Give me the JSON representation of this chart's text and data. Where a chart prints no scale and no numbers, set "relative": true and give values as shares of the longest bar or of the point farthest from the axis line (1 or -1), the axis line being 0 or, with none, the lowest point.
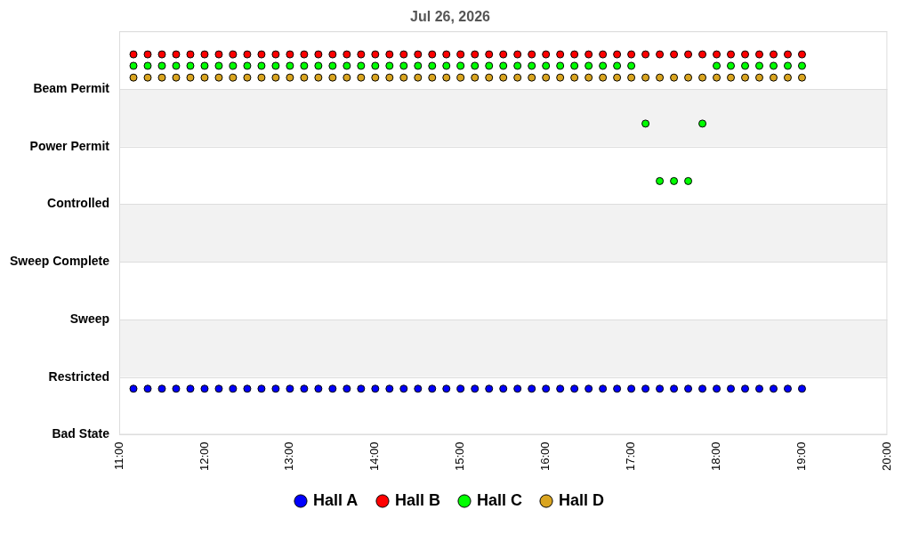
{
  "chart_data": {
    "type": "scatter",
    "title": "Jul 26, 2026",
    "relative": true,
    "x": [
      "2026-07-26T11:10",
      "2026-07-26T11:20",
      "2026-07-26T11:30",
      "2026-07-26T11:40",
      "2026-07-26T11:50",
      "2026-07-26T12:00",
      "2026-07-26T12:10",
      "2026-07-26T12:20",
      "2026-07-26T12:30",
      "2026-07-26T12:40",
      "2026-07-26T12:50",
      "2026-07-26T13:00",
      "2026-07-26T13:10",
      "2026-07-26T13:20",
      "2026-07-26T13:30",
      "2026-07-26T13:40",
      "2026-07-26T13:50",
      "2026-07-26T14:00",
      "2026-07-26T14:10",
      "2026-07-26T14:20",
      "2026-07-26T14:30",
      "2026-07-26T14:40",
      "2026-07-26T14:50",
      "2026-07-26T15:00",
      "2026-07-26T15:10",
      "2026-07-26T15:20",
      "2026-07-26T15:30",
      "2026-07-26T15:40",
      "2026-07-26T15:50",
      "2026-07-26T16:00",
      "2026-07-26T16:10",
      "2026-07-26T16:20",
      "2026-07-26T16:30",
      "2026-07-26T16:40",
      "2026-07-26T16:50",
      "2026-07-26T17:00",
      "2026-07-26T17:10",
      "2026-07-26T17:20",
      "2026-07-26T17:30",
      "2026-07-26T17:40",
      "2026-07-26T17:50",
      "2026-07-26T18:00",
      "2026-07-26T18:10",
      "2026-07-26T18:20",
      "2026-07-26T18:30",
      "2026-07-26T18:40",
      "2026-07-26T18:50",
      "2026-07-26T19:00"
    ],
    "y_categories": [
      "Beam Permit",
      "Power Permit",
      "Controlled",
      "Sweep Complete",
      "Sweep",
      "Restricted",
      "Bad State"
    ],
    "series": [
      {
        "name": "Hall A",
        "color": "#0000ff",
        "values": [
          0.121,
          0.121,
          0.121,
          0.121,
          0.121,
          0.121,
          0.121,
          0.121,
          0.121,
          0.121,
          0.121,
          0.121,
          0.121,
          0.121,
          0.121,
          0.121,
          0.121,
          0.121,
          0.121,
          0.121,
          0.121,
          0.121,
          0.121,
          0.121,
          0.121,
          0.121,
          0.121,
          0.121,
          0.121,
          0.121,
          0.121,
          0.121,
          0.121,
          0.121,
          0.121,
          0.121,
          0.121,
          0.121,
          0.121,
          0.121,
          0.121,
          0.121,
          0.121,
          0.121,
          0.121,
          0.121,
          0.121,
          0.121
        ]
      },
      {
        "name": "Hall B",
        "color": "#ff0000",
        "values": [
          1,
          1,
          1,
          1,
          1,
          1,
          1,
          1,
          1,
          1,
          1,
          1,
          1,
          1,
          1,
          1,
          1,
          1,
          1,
          1,
          1,
          1,
          1,
          1,
          1,
          1,
          1,
          1,
          1,
          1,
          1,
          1,
          1,
          1,
          1,
          1,
          1,
          1,
          1,
          1,
          1,
          1,
          1,
          1,
          1,
          1,
          1,
          1
        ]
      },
      {
        "name": "Hall C",
        "color": "#00ff00",
        "values": [
          0.97,
          0.97,
          0.97,
          0.97,
          0.97,
          0.97,
          0.97,
          0.97,
          0.97,
          0.97,
          0.97,
          0.97,
          0.97,
          0.97,
          0.97,
          0.97,
          0.97,
          0.97,
          0.97,
          0.97,
          0.97,
          0.97,
          0.97,
          0.97,
          0.97,
          0.97,
          0.97,
          0.97,
          0.97,
          0.97,
          0.97,
          0.97,
          0.97,
          0.97,
          0.97,
          0.97,
          0.818,
          0.667,
          0.667,
          0.667,
          0.818,
          0.97,
          0.97,
          0.97,
          0.97,
          0.97,
          0.97,
          0.97
        ]
      },
      {
        "name": "Hall D",
        "color": "#daa520",
        "values": [
          0.939,
          0.939,
          0.939,
          0.939,
          0.939,
          0.939,
          0.939,
          0.939,
          0.939,
          0.939,
          0.939,
          0.939,
          0.939,
          0.939,
          0.939,
          0.939,
          0.939,
          0.939,
          0.939,
          0.939,
          0.939,
          0.939,
          0.939,
          0.939,
          0.939,
          0.939,
          0.939,
          0.939,
          0.939,
          0.939,
          0.939,
          0.939,
          0.939,
          0.939,
          0.939,
          0.939,
          0.939,
          0.939,
          0.939,
          0.939,
          0.939,
          0.939,
          0.939,
          0.939,
          0.939,
          0.939,
          0.939,
          0.939
        ]
      }
    ],
    "xlim": [
      "2026-07-26T11:00",
      "2026-07-26T20:00"
    ],
    "xticks": [
      {
        "value": "2026-07-26T11:00",
        "label": "11:00"
      },
      {
        "value": "2026-07-26T12:00",
        "label": "12:00"
      },
      {
        "value": "2026-07-26T13:00",
        "label": "13:00"
      },
      {
        "value": "2026-07-26T14:00",
        "label": "14:00"
      },
      {
        "value": "2026-07-26T15:00",
        "label": "15:00"
      },
      {
        "value": "2026-07-26T16:00",
        "label": "16:00"
      },
      {
        "value": "2026-07-26T17:00",
        "label": "17:00"
      },
      {
        "value": "2026-07-26T18:00",
        "label": "18:00"
      },
      {
        "value": "2026-07-26T19:00",
        "label": "19:00"
      },
      {
        "value": "2026-07-26T20:00",
        "label": "20:00"
      }
    ],
    "bands": [
      {
        "axis": "y",
        "from": 0.152,
        "to": 0.303,
        "color": "#f2f2f2"
      },
      {
        "axis": "y",
        "from": 0.455,
        "to": 0.606,
        "color": "#f2f2f2"
      },
      {
        "axis": "y",
        "from": 0.758,
        "to": 0.909,
        "color": "#f2f2f2"
      }
    ],
    "grid": "y",
    "legend": "bottom",
    "marker": "circle"
  }
}
